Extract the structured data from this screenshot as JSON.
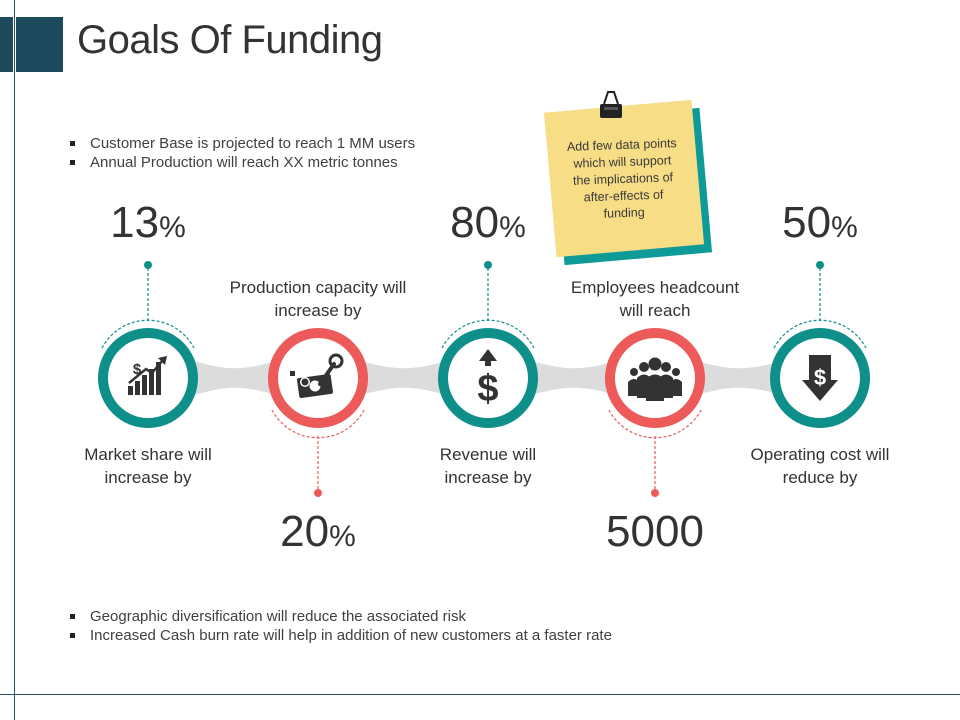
{
  "title": "Goals Of Funding",
  "top_bullets": [
    "Customer Base is projected to reach 1 MM users",
    "Annual Production will reach XX metric tonnes"
  ],
  "bottom_bullets": [
    "Geographic diversification will reduce the associated risk",
    "Increased Cash burn rate will help in addition of new customers at a faster rate"
  ],
  "sticky_note": "Add few data points which will support the implications of after-effects of funding",
  "colors": {
    "teal": "#0f8f89",
    "red": "#ec5a5a",
    "dark": "#1e4a5e",
    "note_yellow": "#f7dd85",
    "note_teal": "#0e9a96"
  },
  "goals": [
    {
      "label": "Market share will increase by",
      "value": "13",
      "unit": "%",
      "icon": "chart-dollar-icon",
      "color": "teal"
    },
    {
      "label": "Production capacity will increase by",
      "value": "20",
      "unit": "%",
      "icon": "money-wrench-icon",
      "color": "red"
    },
    {
      "label": "Revenue will increase by",
      "value": "80",
      "unit": "%",
      "icon": "dollar-arrow-up-icon",
      "color": "teal"
    },
    {
      "label": "Employees headcount will reach",
      "value": "5000",
      "unit": "",
      "icon": "people-group-icon",
      "color": "red"
    },
    {
      "label": "Operating cost will reduce by",
      "value": "50",
      "unit": "%",
      "icon": "dollar-arrow-down-icon",
      "color": "teal"
    }
  ]
}
